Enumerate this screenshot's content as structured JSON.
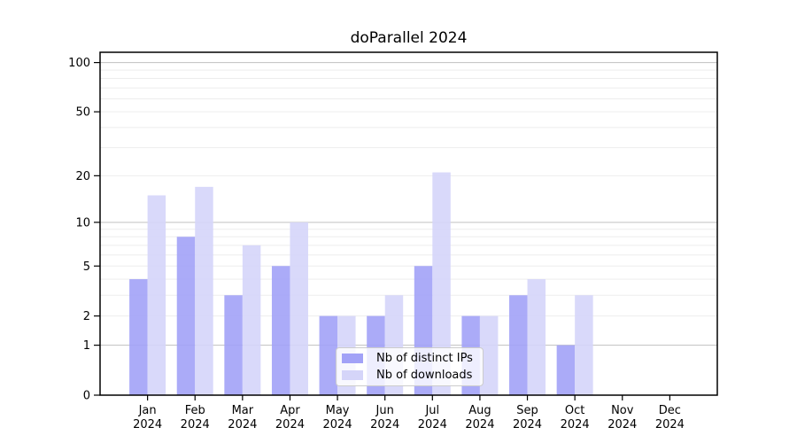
{
  "title": "doParallel 2024",
  "chart_data": {
    "type": "bar",
    "title": "doParallel 2024",
    "yscale": "log1p",
    "grid": true,
    "legend_position": "lower-center-inside",
    "categories": [
      "Jan",
      "Feb",
      "Mar",
      "Apr",
      "May",
      "Jun",
      "Jul",
      "Aug",
      "Sep",
      "Oct",
      "Nov",
      "Dec"
    ],
    "year_label": "2024",
    "series": [
      {
        "name": "Nb of distinct IPs",
        "color": "#a2a2f7",
        "values": [
          4,
          8,
          3,
          5,
          2,
          2,
          5,
          2,
          3,
          1,
          0,
          0
        ]
      },
      {
        "name": "Nb of downloads",
        "color": "#d5d5f9",
        "values": [
          15,
          17,
          7,
          10,
          2,
          3,
          21,
          2,
          4,
          3,
          0,
          0
        ]
      }
    ],
    "yticks": [
      0,
      1,
      2,
      5,
      10,
      20,
      50,
      100
    ],
    "ylim": [
      0,
      100
    ],
    "major_gridlines": [
      1,
      10,
      100
    ],
    "minor_gridlines": [
      2,
      3,
      4,
      5,
      6,
      7,
      8,
      9,
      20,
      30,
      40,
      50,
      60,
      70,
      80,
      90
    ],
    "colors": {
      "major_grid": "#c0c0c0",
      "minor_grid": "#ededed",
      "axis": "#000000",
      "background": "#ffffff"
    }
  }
}
